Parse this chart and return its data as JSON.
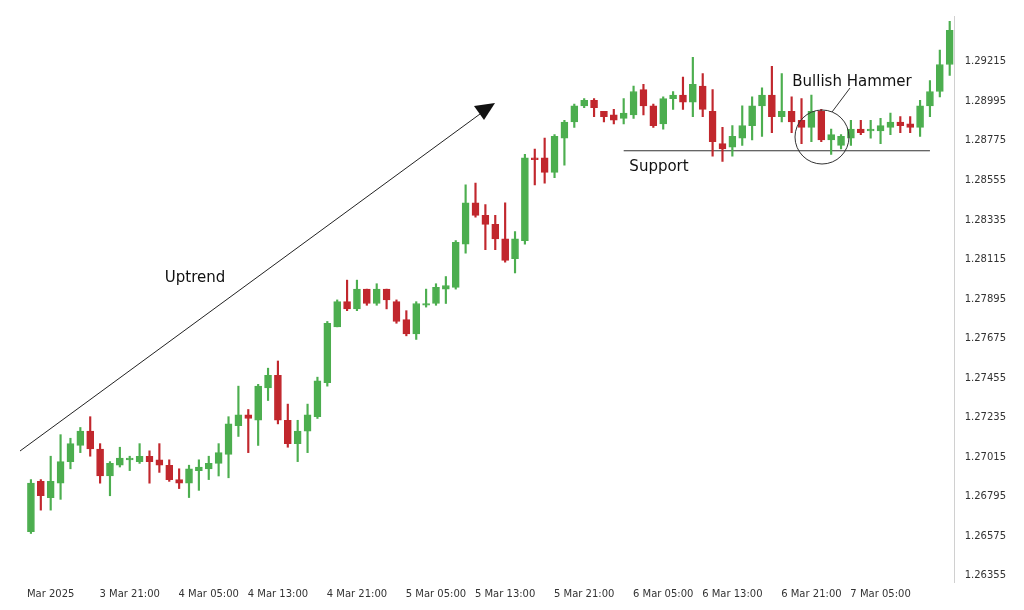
{
  "chart_data": {
    "type": "candlestick",
    "categories": [
      null,
      null,
      "Mar 2025",
      null,
      null,
      null,
      null,
      null,
      null,
      null,
      "3 Mar 21:00",
      null,
      null,
      null,
      null,
      null,
      null,
      null,
      "4 Mar 05:00",
      null,
      null,
      null,
      null,
      null,
      null,
      "4 Mar 13:00",
      null,
      null,
      null,
      null,
      null,
      null,
      null,
      "4 Mar 21:00",
      null,
      null,
      null,
      null,
      null,
      null,
      null,
      "5 Mar 05:00",
      null,
      null,
      null,
      null,
      null,
      null,
      "5 Mar 13:00",
      null,
      null,
      null,
      null,
      null,
      null,
      null,
      "5 Mar 21:00",
      null,
      null,
      null,
      null,
      null,
      null,
      null,
      "6 Mar 05:00",
      null,
      null,
      null,
      null,
      null,
      null,
      "6 Mar 13:00",
      null,
      null,
      null,
      null,
      null,
      null,
      null,
      "6 Mar 21:00",
      null,
      null,
      null,
      null,
      null,
      null,
      "7 Mar 05:00",
      null,
      null,
      null,
      null,
      null,
      null,
      null
    ],
    "ohlc": [
      [
        1.266,
        1.2689,
        1.2659,
        1.2687
      ],
      [
        1.2688,
        1.2689,
        1.2672,
        1.268
      ],
      [
        1.2679,
        1.2702,
        1.2672,
        1.2688
      ],
      [
        1.2687,
        1.2714,
        1.2678,
        1.2699
      ],
      [
        1.2699,
        1.2712,
        1.2695,
        1.2709
      ],
      [
        1.2708,
        1.2718,
        1.2704,
        1.2716
      ],
      [
        1.2716,
        1.2724,
        1.2702,
        1.2706
      ],
      [
        1.2706,
        1.2709,
        1.2687,
        1.2691
      ],
      [
        1.2691,
        1.2699,
        1.268,
        1.2698
      ],
      [
        1.2697,
        1.2707,
        1.2696,
        1.2701
      ],
      [
        1.27,
        1.2702,
        1.2694,
        1.2701
      ],
      [
        1.2699,
        1.2709,
        1.2698,
        1.2702
      ],
      [
        1.2702,
        1.2705,
        1.2687,
        1.2699
      ],
      [
        1.27,
        1.2709,
        1.2693,
        1.2697
      ],
      [
        1.2697,
        1.27,
        1.2688,
        1.2689
      ],
      [
        1.2689,
        1.2695,
        1.2684,
        1.2687
      ],
      [
        1.2687,
        1.2697,
        1.2679,
        1.2695
      ],
      [
        1.2694,
        1.27,
        1.2683,
        1.2696
      ],
      [
        1.2695,
        1.2702,
        1.2689,
        1.2698
      ],
      [
        1.2698,
        1.2709,
        1.2691,
        1.2704
      ],
      [
        1.2703,
        1.2724,
        1.269,
        1.272
      ],
      [
        1.2719,
        1.2741,
        1.2713,
        1.2725
      ],
      [
        1.2725,
        1.2728,
        1.2704,
        1.2723
      ],
      [
        1.2722,
        1.2742,
        1.2708,
        1.2741
      ],
      [
        1.274,
        1.2751,
        1.2733,
        1.2747
      ],
      [
        1.2747,
        1.2755,
        1.272,
        1.2722
      ],
      [
        1.2722,
        1.2731,
        1.2707,
        1.2709
      ],
      [
        1.2709,
        1.2722,
        1.2699,
        1.2716
      ],
      [
        1.2716,
        1.2731,
        1.2704,
        1.2725
      ],
      [
        1.2724,
        1.2746,
        1.2723,
        1.2744
      ],
      [
        1.2743,
        1.2777,
        1.2741,
        1.2776
      ],
      [
        1.2774,
        1.2789,
        1.2774,
        1.2788
      ],
      [
        1.2788,
        1.28,
        1.2783,
        1.2784
      ],
      [
        1.2784,
        1.28,
        1.2783,
        1.2795
      ],
      [
        1.2795,
        1.2795,
        1.2786,
        1.2787
      ],
      [
        1.2787,
        1.2798,
        1.2786,
        1.2795
      ],
      [
        1.2795,
        1.2795,
        1.2784,
        1.2789
      ],
      [
        1.2788,
        1.2789,
        1.2776,
        1.2777
      ],
      [
        1.2778,
        1.2783,
        1.2769,
        1.277
      ],
      [
        1.277,
        1.2788,
        1.2767,
        1.2787
      ],
      [
        1.2786,
        1.2795,
        1.2785,
        1.2787
      ],
      [
        1.2787,
        1.2798,
        1.2786,
        1.2796
      ],
      [
        1.2795,
        1.2802,
        1.2787,
        1.2797
      ],
      [
        1.2796,
        1.2822,
        1.2795,
        1.2821
      ],
      [
        1.282,
        1.2853,
        1.2815,
        1.2843
      ],
      [
        1.2843,
        1.2854,
        1.2835,
        1.2836
      ],
      [
        1.2836,
        1.2842,
        1.2817,
        1.2831
      ],
      [
        1.2831,
        1.2836,
        1.2817,
        1.2823
      ],
      [
        1.2823,
        1.2843,
        1.281,
        1.2811
      ],
      [
        1.2812,
        1.2827,
        1.2804,
        1.2823
      ],
      [
        1.2822,
        1.287,
        1.282,
        1.2868
      ],
      [
        1.2868,
        1.2873,
        1.2853,
        1.2867
      ],
      [
        1.2868,
        1.2879,
        1.2854,
        1.286
      ],
      [
        1.286,
        1.2881,
        1.2857,
        1.288
      ],
      [
        1.2879,
        1.2889,
        1.2864,
        1.2888
      ],
      [
        1.2888,
        1.2898,
        1.2885,
        1.2897
      ],
      [
        1.2897,
        1.2901,
        1.2896,
        1.29
      ],
      [
        1.29,
        1.2901,
        1.2891,
        1.2896
      ],
      [
        1.2894,
        1.2894,
        1.2888,
        1.2891
      ],
      [
        1.2892,
        1.2895,
        1.2887,
        1.2889
      ],
      [
        1.289,
        1.2901,
        1.2887,
        1.2893
      ],
      [
        1.2892,
        1.2908,
        1.289,
        1.2905
      ],
      [
        1.2906,
        1.2909,
        1.2892,
        1.2897
      ],
      [
        1.2897,
        1.2898,
        1.2885,
        1.2886
      ],
      [
        1.2887,
        1.2902,
        1.2884,
        1.2901
      ],
      [
        1.2901,
        1.2905,
        1.2895,
        1.2903
      ],
      [
        1.2903,
        1.2913,
        1.2895,
        1.2899
      ],
      [
        1.2899,
        1.2924,
        1.2891,
        1.2909
      ],
      [
        1.2908,
        1.2915,
        1.2891,
        1.2895
      ],
      [
        1.2894,
        1.2906,
        1.2869,
        1.2877
      ],
      [
        1.2876,
        1.2885,
        1.2866,
        1.2873
      ],
      [
        1.2874,
        1.2886,
        1.2869,
        1.288
      ],
      [
        1.2879,
        1.2897,
        1.2875,
        1.2886
      ],
      [
        1.2886,
        1.2902,
        1.2878,
        1.2897
      ],
      [
        1.2897,
        1.2907,
        1.288,
        1.2903
      ],
      [
        1.2903,
        1.2919,
        1.2882,
        1.2891
      ],
      [
        1.2891,
        1.2915,
        1.2888,
        1.2894
      ],
      [
        1.2894,
        1.2902,
        1.2882,
        1.2888
      ],
      [
        1.2889,
        1.2901,
        1.2876,
        1.2885
      ],
      [
        1.2885,
        1.2903,
        1.2877,
        1.2894
      ],
      [
        1.2894,
        1.2895,
        1.2877,
        1.2878
      ],
      [
        1.2878,
        1.2884,
        1.287,
        1.2881
      ],
      [
        1.2875,
        1.2881,
        1.2873,
        1.288
      ],
      [
        1.2879,
        1.2889,
        1.2875,
        1.2884
      ],
      [
        1.2884,
        1.2889,
        1.2881,
        1.2882
      ],
      [
        1.2883,
        1.2889,
        1.2879,
        1.2884
      ],
      [
        1.2883,
        1.289,
        1.2876,
        1.2886
      ],
      [
        1.2885,
        1.2893,
        1.2881,
        1.2888
      ],
      [
        1.2888,
        1.2891,
        1.2882,
        1.2886
      ],
      [
        1.2887,
        1.2891,
        1.2882,
        1.2885
      ],
      [
        1.2885,
        1.29,
        1.288,
        1.2897
      ],
      [
        1.2897,
        1.2911,
        1.2891,
        1.2905
      ],
      [
        1.2905,
        1.2928,
        1.2902,
        1.292
      ],
      [
        1.292,
        1.2944,
        1.2914,
        1.2939
      ]
    ],
    "colors": [
      "#4cae4f",
      "#c1272d",
      "#4cae4f",
      "#4cae4f",
      "#4cae4f",
      "#4cae4f",
      "#c1272d",
      "#c1272d",
      "#4cae4f",
      "#4cae4f",
      "#4cae4f",
      "#4cae4f",
      "#c1272d",
      "#c1272d",
      "#c1272d",
      "#c1272d",
      "#4cae4f",
      "#4cae4f",
      "#4cae4f",
      "#4cae4f",
      "#4cae4f",
      "#4cae4f",
      "#c1272d",
      "#4cae4f",
      "#4cae4f",
      "#c1272d",
      "#c1272d",
      "#4cae4f",
      "#4cae4f",
      "#4cae4f",
      "#4cae4f",
      "#4cae4f",
      "#c1272d",
      "#4cae4f",
      "#c1272d",
      "#4cae4f",
      "#c1272d",
      "#c1272d",
      "#c1272d",
      "#4cae4f",
      "#4cae4f",
      "#4cae4f",
      "#4cae4f",
      "#4cae4f",
      "#4cae4f",
      "#c1272d",
      "#c1272d",
      "#c1272d",
      "#c1272d",
      "#4cae4f",
      "#4cae4f",
      "#c1272d",
      "#c1272d",
      "#4cae4f",
      "#4cae4f",
      "#4cae4f",
      "#4cae4f",
      "#c1272d",
      "#c1272d",
      "#c1272d",
      "#4cae4f",
      "#4cae4f",
      "#c1272d",
      "#c1272d",
      "#4cae4f",
      "#4cae4f",
      "#c1272d",
      "#4cae4f",
      "#c1272d",
      "#c1272d",
      "#c1272d",
      "#4cae4f",
      "#4cae4f",
      "#4cae4f",
      "#4cae4f",
      "#c1272d",
      "#4cae4f",
      "#c1272d",
      "#c1272d",
      "#4cae4f",
      "#c1272d",
      "#4cae4f",
      "#4cae4f",
      "#4cae4f",
      "#c1272d",
      "#4cae4f",
      "#4cae4f",
      "#4cae4f",
      "#c1272d",
      "#c1272d",
      "#4cae4f",
      "#4cae4f",
      "#4cae4f",
      "#4cae4f"
    ],
    "series": [
      {
        "type": "line",
        "color": "#333333",
        "values": [
          null,
          null,
          null,
          null,
          null,
          null,
          null,
          null,
          null,
          null,
          null,
          null,
          null,
          null,
          null,
          null,
          null,
          null,
          null,
          null,
          null,
          null,
          null,
          null,
          null,
          null,
          null,
          null,
          null,
          null,
          null,
          null,
          null,
          null,
          null,
          null,
          null,
          null,
          null,
          null,
          null,
          null,
          null,
          null,
          null,
          null,
          null,
          null,
          null,
          null,
          null,
          null,
          null,
          null,
          null,
          null,
          null,
          null,
          null,
          null,
          1.2872,
          null,
          null,
          null,
          null,
          null,
          null,
          null,
          null,
          null,
          null,
          null,
          null,
          null,
          null,
          null,
          null,
          null,
          null,
          null,
          null,
          null,
          null,
          null,
          null,
          null,
          null,
          null,
          null,
          null,
          null,
          1.2872,
          null,
          null
        ]
      }
    ],
    "ylim": [
      1.2632,
      1.2947
    ],
    "yticks": [
      1.26355,
      1.26575,
      1.26795,
      1.27015,
      1.27235,
      1.27455,
      1.27675,
      1.27895,
      1.28115,
      1.28335,
      1.28555,
      1.28775,
      1.28995,
      1.29215
    ],
    "annotations": [
      "Uptrend",
      "Support",
      "Bullish Hammer"
    ],
    "grid": false,
    "legend": false,
    "marker": "none",
    "line_style": "solid"
  }
}
